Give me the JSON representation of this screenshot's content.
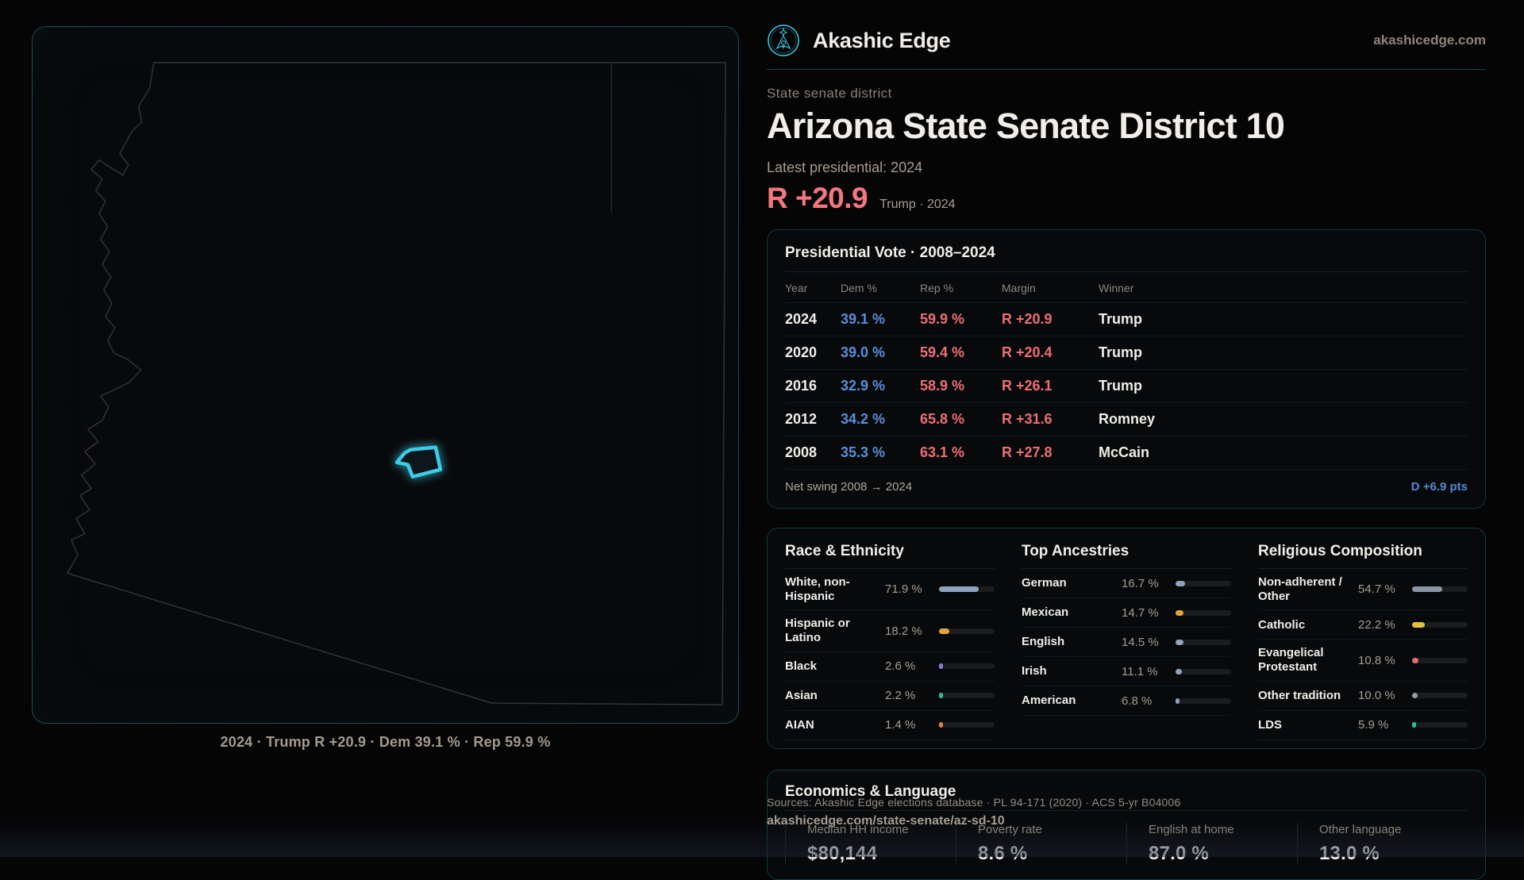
{
  "brand": {
    "name": "Akashic Edge",
    "domain": "akashicedge.com"
  },
  "page": {
    "eyebrow": "State senate district",
    "title": "Arizona State Senate District 10",
    "latest_label": "Latest presidential: 2024",
    "margin_value": "R +20.9",
    "margin_context": "Trump · 2024"
  },
  "map": {
    "caption": "2024 · Trump R +20.9 · Dem 39.1 % · Rep 59.9 %"
  },
  "presidential_table": {
    "title": "Presidential Vote · 2008–2024",
    "columns": [
      "Year",
      "Dem %",
      "Rep %",
      "Margin",
      "Winner"
    ],
    "rows": [
      {
        "year": "2024",
        "dem": "39.1 %",
        "rep": "59.9 %",
        "margin": "R +20.9",
        "winner": "Trump"
      },
      {
        "year": "2020",
        "dem": "39.0 %",
        "rep": "59.4 %",
        "margin": "R +20.4",
        "winner": "Trump"
      },
      {
        "year": "2016",
        "dem": "32.9 %",
        "rep": "58.9 %",
        "margin": "R +26.1",
        "winner": "Trump"
      },
      {
        "year": "2012",
        "dem": "34.2 %",
        "rep": "65.8 %",
        "margin": "R +31.6",
        "winner": "Romney"
      },
      {
        "year": "2008",
        "dem": "35.3 %",
        "rep": "63.1 %",
        "margin": "R +27.8",
        "winner": "McCain"
      }
    ],
    "net_swing_label": "Net swing 2008 → 2024",
    "net_swing_value": "D +6.9 pts"
  },
  "demographics": {
    "race": {
      "title": "Race & Ethnicity",
      "rows": [
        {
          "label": "White, non-Hispanic",
          "value": "71.9 %",
          "pct": 71.9,
          "color": "#8da3bd"
        },
        {
          "label": "Hispanic or Latino",
          "value": "18.2 %",
          "pct": 18.2,
          "color": "#e3a43c"
        },
        {
          "label": "Black",
          "value": "2.6 %",
          "pct": 2.6,
          "color": "#8d7bee"
        },
        {
          "label": "Asian",
          "value": "2.2 %",
          "pct": 2.2,
          "color": "#2fbf95"
        },
        {
          "label": "AIAN",
          "value": "1.4 %",
          "pct": 1.4,
          "color": "#e07f3a"
        }
      ]
    },
    "ancestries": {
      "title": "Top Ancestries",
      "rows": [
        {
          "label": "German",
          "value": "16.7 %",
          "pct": 16.7,
          "color": "#8da3bd"
        },
        {
          "label": "Mexican",
          "value": "14.7 %",
          "pct": 14.7,
          "color": "#e3a43c"
        },
        {
          "label": "English",
          "value": "14.5 %",
          "pct": 14.5,
          "color": "#8da3bd"
        },
        {
          "label": "Irish",
          "value": "11.1 %",
          "pct": 11.1,
          "color": "#8da3bd"
        },
        {
          "label": "American",
          "value": "6.8 %",
          "pct": 6.8,
          "color": "#8da3bd"
        }
      ]
    },
    "religion": {
      "title": "Religious Composition",
      "rows": [
        {
          "label": "Non-adherent / Other",
          "value": "54.7 %",
          "pct": 54.7,
          "color": "#8b95a6"
        },
        {
          "label": "Catholic",
          "value": "22.2 %",
          "pct": 22.2,
          "color": "#e2c13f"
        },
        {
          "label": "Evangelical Protestant",
          "value": "10.8 %",
          "pct": 10.8,
          "color": "#e26c66"
        },
        {
          "label": "Other tradition",
          "value": "10.0 %",
          "pct": 10.0,
          "color": "#969ca8"
        },
        {
          "label": "LDS",
          "value": "5.9 %",
          "pct": 5.9,
          "color": "#2fbf95"
        }
      ]
    }
  },
  "economics": {
    "title": "Economics & Language",
    "stats": [
      {
        "label": "Median HH income",
        "value": "$80,144"
      },
      {
        "label": "Poverty rate",
        "value": "8.6 %"
      },
      {
        "label": "English at home",
        "value": "87.0 %"
      },
      {
        "label": "Other language",
        "value": "13.0 %"
      }
    ]
  },
  "footer": {
    "sources": "Sources: Akashic Edge elections database · PL 94-171 (2020) · ACS 5-yr B04006",
    "permalink": "akashicedge.com/state-senate/az-sd-10"
  },
  "colors": {
    "accent_cyan": "#3ecbe8",
    "dem_blue": "#5b8fd9",
    "rep_red": "#ef6e77",
    "margin_red": "#f4767f"
  }
}
